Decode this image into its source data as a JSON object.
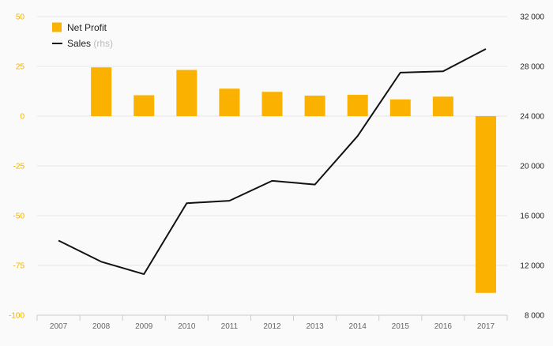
{
  "chart_data": {
    "type": "bar+line",
    "categories": [
      "2007",
      "2008",
      "2009",
      "2010",
      "2011",
      "2012",
      "2013",
      "2014",
      "2015",
      "2016",
      "2017"
    ],
    "series": [
      {
        "name": "Net Profit",
        "type": "bar",
        "axis": "left",
        "color": "#fbb100",
        "values": [
          null,
          24.5,
          10.5,
          23.2,
          13.8,
          12.2,
          10.3,
          10.7,
          8.4,
          9.8,
          -88.8
        ]
      },
      {
        "name": "Sales",
        "type": "line",
        "axis": "right",
        "color": "#111111",
        "values": [
          14000,
          12300,
          11300,
          17000,
          17200,
          18800,
          18500,
          22400,
          27500,
          27600,
          29400
        ]
      }
    ],
    "legend": {
      "items": [
        {
          "label": "Net Profit",
          "suffix": "",
          "marker": "square",
          "color": "#fbb100"
        },
        {
          "label": "Sales",
          "suffix": "(rhs)",
          "marker": "line",
          "color": "#111111"
        }
      ],
      "position": "top-left"
    },
    "y_left": {
      "range": [
        -100,
        50
      ],
      "ticks": [
        50,
        25,
        0,
        -25,
        -50,
        -75,
        -100
      ],
      "labels": [
        "50",
        "25",
        "0",
        "-25",
        "-50",
        "-75",
        "-100"
      ],
      "color": "#f0b300"
    },
    "y_right": {
      "range": [
        8000,
        32000
      ],
      "ticks": [
        32000,
        28000,
        24000,
        20000,
        16000,
        12000,
        8000
      ],
      "labels": [
        "32 000",
        "28 000",
        "24 000",
        "20 000",
        "16 000",
        "12 000",
        "8 000"
      ]
    },
    "grid": true
  }
}
